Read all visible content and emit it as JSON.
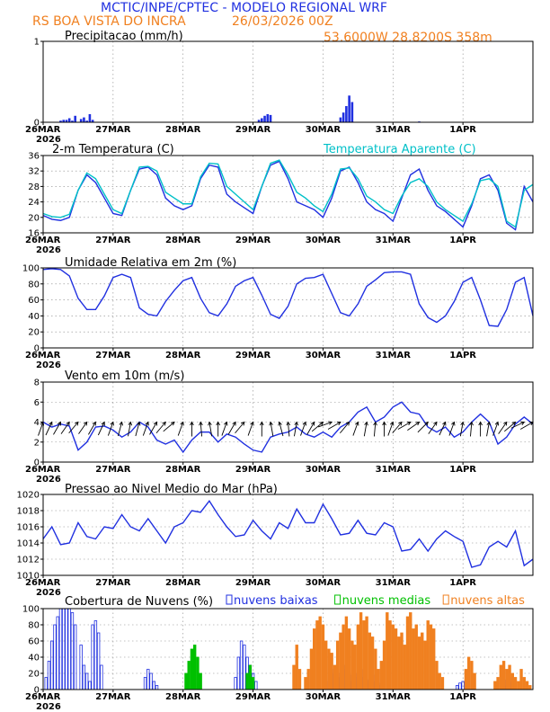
{
  "header": {
    "title": "MCTIC/INPE/CPTEC - MODELO REGIONAL WRF",
    "station": "RS BOA VISTA DO INCRA",
    "run": "26/03/2026 00Z",
    "coords": "53.6000W  28.8200S  358m"
  },
  "xaxis": {
    "labels": [
      "26MAR",
      "27MAR",
      "28MAR",
      "29MAR",
      "30MAR",
      "31MAR",
      "1APR"
    ],
    "year": "2026",
    "hours_total": 168
  },
  "colors": {
    "blue": "#2030e0",
    "cyan": "#00c0c8",
    "green": "#00c000",
    "orange": "#f08020"
  },
  "chart_data": [
    {
      "id": "precip",
      "type": "bar",
      "title": "Precipitacao (mm/h)",
      "ylim": [
        0,
        1
      ],
      "yticks": [
        "0",
        "1"
      ],
      "x_hours": [
        6,
        7,
        8,
        9,
        10,
        11,
        13,
        14,
        15,
        16,
        17,
        74,
        75,
        76,
        77,
        78,
        102,
        103,
        104,
        105,
        106,
        129
      ],
      "values": [
        0.02,
        0.03,
        0.03,
        0.05,
        0.02,
        0.08,
        0.04,
        0.06,
        0.02,
        0.1,
        0.03,
        0.03,
        0.05,
        0.08,
        0.1,
        0.09,
        0.06,
        0.12,
        0.2,
        0.33,
        0.25,
        0.01
      ]
    },
    {
      "id": "temp",
      "type": "line",
      "title": "2-m Temperatura (C)",
      "legend": "Temperatura Aparente (C)",
      "ylim": [
        16,
        36
      ],
      "yticks": [
        "16",
        "20",
        "24",
        "28",
        "32",
        "36"
      ],
      "series": [
        {
          "name": "2-m Temperatura (C)",
          "color": "#2030e0",
          "x": [
            0,
            3,
            6,
            9,
            12,
            15,
            18,
            21,
            24,
            27,
            30,
            33,
            36,
            39,
            42,
            45,
            48,
            51,
            54,
            57,
            60,
            63,
            66,
            69,
            72,
            75,
            78,
            81,
            84,
            87,
            90,
            93,
            96,
            99,
            102,
            105,
            108,
            111,
            114,
            117,
            120,
            123,
            126,
            129,
            132,
            135,
            138,
            141,
            144,
            147,
            150,
            153,
            156,
            159,
            162,
            165,
            168
          ],
          "values": [
            20.5,
            19.5,
            19.2,
            20,
            27,
            31,
            29,
            25,
            21,
            20.5,
            27,
            32.5,
            33,
            31,
            25,
            23,
            22,
            23,
            30,
            33.5,
            33,
            26,
            24,
            22.5,
            21,
            28,
            33.5,
            34.5,
            30,
            24,
            23,
            22,
            20,
            25,
            32,
            33,
            29,
            24,
            22,
            21,
            19,
            25,
            31,
            32.5,
            27,
            23,
            21.5,
            19.5,
            17.5,
            23,
            30,
            31,
            27,
            18.5,
            16.8,
            28,
            24
          ]
        },
        {
          "name": "Temperatura Aparente (C)",
          "color": "#00c0c8",
          "x": [
            0,
            3,
            6,
            9,
            12,
            15,
            18,
            21,
            24,
            27,
            30,
            33,
            36,
            39,
            42,
            45,
            48,
            51,
            54,
            57,
            60,
            63,
            66,
            69,
            72,
            75,
            78,
            81,
            84,
            87,
            90,
            93,
            96,
            99,
            102,
            105,
            108,
            111,
            114,
            117,
            120,
            123,
            126,
            129,
            132,
            135,
            138,
            141,
            144,
            147,
            150,
            153,
            156,
            159,
            162,
            165,
            168
          ],
          "values": [
            21,
            20.2,
            20,
            20.8,
            27,
            31.5,
            30,
            26,
            22,
            21,
            27,
            33,
            33.2,
            32,
            26.5,
            25,
            23.5,
            23.5,
            30.5,
            34,
            33.8,
            28,
            26,
            24,
            22,
            28,
            34,
            34.8,
            31,
            26.5,
            25,
            23,
            21.5,
            26,
            32.5,
            32.8,
            30,
            25.5,
            24,
            22,
            21,
            25.5,
            29,
            30,
            28,
            24,
            22,
            20.5,
            19,
            23.5,
            29.5,
            30,
            28,
            19,
            17.5,
            27,
            28.5
          ]
        }
      ]
    },
    {
      "id": "umid",
      "type": "line",
      "title": "Umidade Relativa em 2m (%)",
      "ylim": [
        0,
        100
      ],
      "yticks": [
        "0",
        "20",
        "40",
        "60",
        "80",
        "100"
      ],
      "series": [
        {
          "name": "Umidade Relativa em 2m (%)",
          "color": "#2030e0",
          "x": [
            0,
            3,
            6,
            9,
            12,
            15,
            18,
            21,
            24,
            27,
            30,
            33,
            36,
            39,
            42,
            45,
            48,
            51,
            54,
            57,
            60,
            63,
            66,
            69,
            72,
            75,
            78,
            81,
            84,
            87,
            90,
            93,
            96,
            99,
            102,
            105,
            108,
            111,
            114,
            117,
            120,
            123,
            126,
            129,
            132,
            135,
            138,
            141,
            144,
            147,
            150,
            153,
            156,
            159,
            162,
            165,
            168
          ],
          "values": [
            98,
            99,
            98,
            90,
            62,
            48,
            48,
            65,
            88,
            92,
            88,
            50,
            42,
            40,
            58,
            72,
            84,
            88,
            62,
            44,
            40,
            55,
            77,
            84,
            88,
            66,
            42,
            37,
            52,
            80,
            87,
            88,
            92,
            68,
            44,
            40,
            55,
            77,
            85,
            94,
            95,
            95,
            92,
            55,
            38,
            32,
            40,
            58,
            82,
            88,
            60,
            28,
            27,
            48,
            82,
            88,
            40
          ]
        }
      ]
    },
    {
      "id": "vento",
      "type": "line",
      "title": "Vento em 10m (m/s)",
      "ylim": [
        0,
        8
      ],
      "yticks": [
        "0",
        "2",
        "4",
        "6",
        "8"
      ],
      "series": [
        {
          "name": "Vento em 10m (m/s)",
          "color": "#2030e0",
          "x": [
            0,
            3,
            6,
            9,
            12,
            15,
            18,
            21,
            24,
            27,
            30,
            33,
            36,
            39,
            42,
            45,
            48,
            51,
            54,
            57,
            60,
            63,
            66,
            69,
            72,
            75,
            78,
            81,
            84,
            87,
            90,
            93,
            96,
            99,
            102,
            105,
            108,
            111,
            114,
            117,
            120,
            123,
            126,
            129,
            132,
            135,
            138,
            141,
            144,
            147,
            150,
            153,
            156,
            159,
            162,
            165,
            168
          ],
          "values": [
            4,
            3.5,
            3.8,
            3.6,
            1.2,
            2,
            3.5,
            3.6,
            3.2,
            2.5,
            3,
            4,
            3.5,
            2.2,
            1.8,
            2.2,
            1,
            2.2,
            3,
            3,
            2,
            2.8,
            2.5,
            1.8,
            1.2,
            1,
            2.5,
            2.8,
            3,
            3.5,
            2.8,
            2.5,
            3,
            2.5,
            3.5,
            4,
            5,
            5.5,
            4,
            4.5,
            5.5,
            6,
            5,
            4.8,
            3.5,
            3,
            3.5,
            2.5,
            3,
            4,
            4.8,
            4,
            1.8,
            2.5,
            3.8,
            4.5,
            3.8
          ]
        }
      ],
      "barbs_deg": [
        200,
        205,
        210,
        215,
        220,
        215,
        210,
        205,
        200,
        195,
        190,
        195,
        200,
        210,
        220,
        230,
        200,
        180,
        175,
        170,
        180,
        200,
        210,
        220,
        200,
        180,
        170,
        165,
        175,
        190,
        200,
        210,
        230,
        250,
        240,
        220,
        200,
        190,
        185,
        180,
        200,
        220,
        240,
        235,
        225,
        215,
        205,
        200,
        190,
        185,
        180,
        190,
        200,
        215,
        230,
        245,
        240
      ]
    },
    {
      "id": "pressao",
      "type": "line",
      "title": "Pressao ao Nivel Medio do Mar (hPa)",
      "ylim": [
        1010,
        1020
      ],
      "yticks": [
        "1010",
        "1012",
        "1014",
        "1016",
        "1018",
        "1020"
      ],
      "series": [
        {
          "name": "Pressao ao Nivel Medio do Mar (hPa)",
          "color": "#2030e0",
          "x": [
            0,
            3,
            6,
            9,
            12,
            15,
            18,
            21,
            24,
            27,
            30,
            33,
            36,
            39,
            42,
            45,
            48,
            51,
            54,
            57,
            60,
            63,
            66,
            69,
            72,
            75,
            78,
            81,
            84,
            87,
            90,
            93,
            96,
            99,
            102,
            105,
            108,
            111,
            114,
            117,
            120,
            123,
            126,
            129,
            132,
            135,
            138,
            141,
            144,
            147,
            150,
            153,
            156,
            159,
            162,
            165,
            168
          ],
          "values": [
            1014.5,
            1016,
            1013.8,
            1014,
            1016.5,
            1014.8,
            1014.5,
            1016,
            1015.8,
            1017.5,
            1016,
            1015.5,
            1017,
            1015.5,
            1014,
            1016,
            1016.5,
            1018,
            1017.8,
            1019.2,
            1017.5,
            1016,
            1014.8,
            1015,
            1016.8,
            1015.5,
            1014.5,
            1016.5,
            1015.8,
            1018.2,
            1016.5,
            1016.5,
            1018.8,
            1017,
            1015,
            1015.2,
            1016.8,
            1015.2,
            1015,
            1016.5,
            1016,
            1013,
            1013.2,
            1014.5,
            1013,
            1014.5,
            1015.5,
            1014.8,
            1014.2,
            1011,
            1011.3,
            1013.5,
            1014.2,
            1013.5,
            1015.5,
            1011.2,
            1012
          ]
        }
      ]
    },
    {
      "id": "nuvens",
      "type": "bar",
      "title": "Cobertura de Nuvens (%)",
      "ylim": [
        0,
        100
      ],
      "yticks": [
        "0",
        "20",
        "40",
        "60",
        "80",
        "100"
      ],
      "series": [
        {
          "name": "nuvens baixas",
          "color": "#2030e0",
          "x": [
            1,
            2,
            3,
            4,
            5,
            6,
            7,
            8,
            9,
            10,
            11,
            13,
            14,
            15,
            16,
            17,
            18,
            19,
            20,
            35,
            36,
            37,
            38,
            39,
            66,
            67,
            68,
            69,
            70,
            71,
            72,
            73,
            98,
            99,
            100,
            101,
            102,
            103,
            104,
            105,
            106,
            107,
            108,
            109,
            110,
            111,
            112,
            113,
            114,
            115,
            116,
            142,
            143,
            144,
            158,
            159,
            160,
            161
          ],
          "values": [
            15,
            35,
            60,
            80,
            90,
            100,
            100,
            100,
            100,
            95,
            80,
            55,
            30,
            20,
            10,
            80,
            85,
            70,
            30,
            15,
            25,
            20,
            10,
            5,
            15,
            40,
            60,
            55,
            40,
            30,
            20,
            10,
            10,
            20,
            25,
            15,
            20,
            30,
            25,
            18,
            10,
            15,
            20,
            25,
            15,
            10,
            12,
            18,
            10,
            8,
            5,
            5,
            8,
            10,
            5,
            12,
            15,
            10
          ]
        },
        {
          "name": "nuvens medias",
          "color": "#00c000",
          "x": [
            49,
            50,
            51,
            52,
            53,
            54,
            70,
            71,
            72
          ],
          "values": [
            20,
            35,
            50,
            55,
            40,
            20,
            20,
            30,
            15
          ]
        },
        {
          "name": "nuvens altas",
          "color": "#f08020",
          "x": [
            86,
            87,
            88,
            90,
            91,
            92,
            93,
            94,
            95,
            96,
            97,
            98,
            99,
            100,
            101,
            102,
            103,
            104,
            105,
            106,
            107,
            108,
            109,
            110,
            111,
            112,
            113,
            114,
            115,
            116,
            117,
            118,
            119,
            120,
            121,
            122,
            123,
            124,
            125,
            126,
            127,
            128,
            129,
            130,
            131,
            132,
            133,
            134,
            135,
            136,
            137,
            145,
            146,
            147,
            148,
            155,
            156,
            157,
            158,
            159,
            160,
            161,
            162,
            163,
            164,
            165,
            166,
            167
          ],
          "values": [
            30,
            55,
            25,
            15,
            25,
            50,
            75,
            85,
            90,
            80,
            60,
            50,
            45,
            30,
            60,
            70,
            80,
            90,
            75,
            60,
            55,
            80,
            95,
            85,
            90,
            70,
            65,
            50,
            25,
            35,
            60,
            95,
            85,
            80,
            75,
            65,
            70,
            55,
            90,
            95,
            75,
            80,
            65,
            70,
            60,
            85,
            80,
            75,
            35,
            20,
            15,
            25,
            40,
            35,
            20,
            10,
            15,
            30,
            35,
            25,
            30,
            20,
            15,
            10,
            25,
            15,
            10,
            5
          ]
        }
      ]
    }
  ]
}
